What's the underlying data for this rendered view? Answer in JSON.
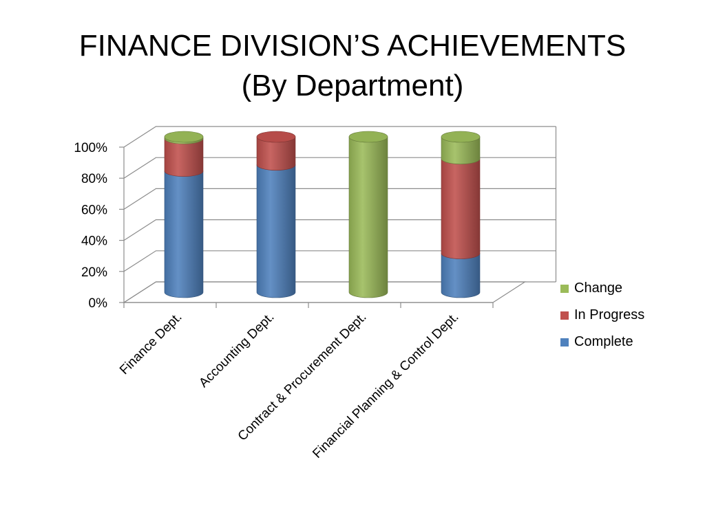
{
  "title": {
    "line1": "FINANCE DIVISION’S ACHIEVEMENTS",
    "line2": "(By Department)"
  },
  "chart_data": {
    "type": "bar",
    "stacked": true,
    "percent_stacked": true,
    "style": "3d-cylinder",
    "categories": [
      "Finance Dept.",
      "Accounting Dept.",
      "Contract & Procurement Dept.",
      "Financial Planning & Control Dept."
    ],
    "series": [
      {
        "name": "Complete",
        "color": "#4F81BD",
        "values": [
          78,
          82,
          0,
          25
        ]
      },
      {
        "name": "In Progress",
        "color": "#C0504D",
        "values": [
          21,
          18,
          0,
          61
        ]
      },
      {
        "name": "Change",
        "color": "#9BBB59",
        "values": [
          1,
          0,
          100,
          14
        ]
      }
    ],
    "yticks": [
      "0%",
      "20%",
      "40%",
      "60%",
      "80%",
      "100%"
    ],
    "ylim": [
      0,
      100
    ],
    "grid": true,
    "legend": "right"
  }
}
